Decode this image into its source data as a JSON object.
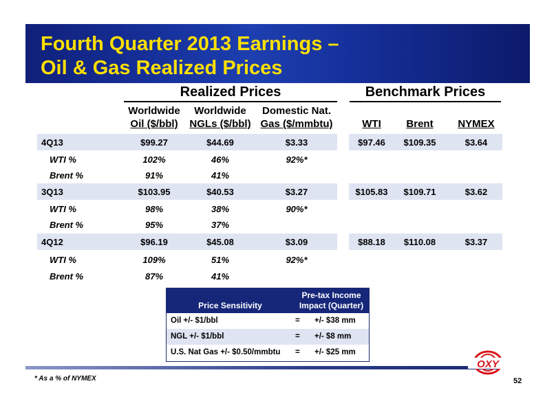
{
  "title": {
    "line1": "Fourth Quarter 2013 Earnings –",
    "line2": "Oil & Gas Realized Prices"
  },
  "realized": {
    "heading": "Realized Prices",
    "columns": [
      {
        "line1": "Worldwide",
        "line2": "Oil ($/bbl)"
      },
      {
        "line1": "Worldwide",
        "line2": "NGLs ($/bbl)"
      },
      {
        "line1": "Domestic Nat.",
        "line2": "Gas ($/mmbtu)"
      }
    ],
    "rows": [
      {
        "label": "4Q13",
        "oil": "$99.27",
        "ngl": "$44.69",
        "gas": "$3.33"
      },
      {
        "label": "WTI %",
        "oil": "102%",
        "ngl": "46%",
        "gas": "92%*"
      },
      {
        "label": "Brent %",
        "oil": "91%",
        "ngl": "41%",
        "gas": ""
      },
      {
        "label": "3Q13",
        "oil": "$103.95",
        "ngl": "$40.53",
        "gas": "$3.27"
      },
      {
        "label": "WTI %",
        "oil": "98%",
        "ngl": "38%",
        "gas": "90%*"
      },
      {
        "label": "Brent %",
        "oil": "95%",
        "ngl": "37%",
        "gas": ""
      },
      {
        "label": "4Q12",
        "oil": "$96.19",
        "ngl": "$45.08",
        "gas": "$3.09"
      },
      {
        "label": "WTI %",
        "oil": "109%",
        "ngl": "51%",
        "gas": "92%*"
      },
      {
        "label": "Brent %",
        "oil": "87%",
        "ngl": "41%",
        "gas": ""
      }
    ]
  },
  "benchmark": {
    "heading": "Benchmark Prices",
    "columns": [
      "WTI",
      "Brent",
      "NYMEX"
    ],
    "rows": [
      {
        "wti": "$97.46",
        "brent": "$109.35",
        "nymex": "$3.64"
      },
      {
        "wti": "$105.83",
        "brent": "$109.71",
        "nymex": "$3.62"
      },
      {
        "wti": "$88.18",
        "brent": "$110.08",
        "nymex": "$3.37"
      }
    ]
  },
  "sensitivity": {
    "header_left": "Price Sensitivity",
    "header_right_line1": "Pre-tax Income",
    "header_right_line2": "Impact (Quarter)",
    "rows": [
      {
        "item": "Oil +/- $1/bbl",
        "eq": "=",
        "impact": "+/- $38 mm"
      },
      {
        "item": "NGL +/- $1/bbl",
        "eq": "=",
        "impact": "+/- $8 mm"
      },
      {
        "item": "U.S. Nat Gas +/- $0.50/mmbtu",
        "eq": "=",
        "impact": "+/- $25 mm"
      }
    ]
  },
  "footnote": "* As a % of NYMEX",
  "page_number": "52",
  "logo_text": "OXY",
  "colors": {
    "banner": "#16309a",
    "title": "#ffe000",
    "band": "#dfe4f2",
    "logo_red": "#d7141a"
  }
}
